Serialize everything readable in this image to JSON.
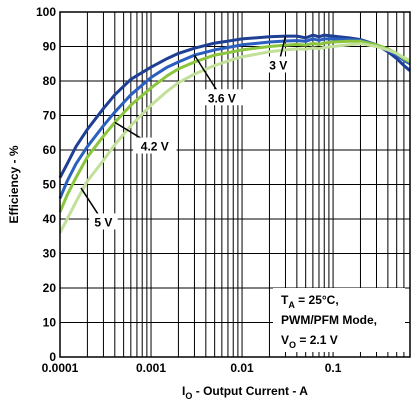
{
  "chart_data": {
    "type": "line",
    "xscale": "log",
    "xlim": [
      0.0001,
      0.7
    ],
    "ylim": [
      0,
      100
    ],
    "xlabel_main": "I",
    "xlabel_sub": "O",
    "xlabel_rest": " - Output Current - A",
    "ylabel": "Efficiency - %",
    "x_ticks": [
      {
        "value": 0.0001,
        "label": "0.0001"
      },
      {
        "value": 0.001,
        "label": "0.001"
      },
      {
        "value": 0.01,
        "label": "0.01"
      },
      {
        "value": 0.1,
        "label": "0.1"
      }
    ],
    "y_ticks": [
      0,
      10,
      20,
      30,
      40,
      50,
      60,
      70,
      80,
      90,
      100
    ],
    "grid": true,
    "series": [
      {
        "name": "3 V",
        "color": "#1f3f95",
        "points": [
          [
            0.0001,
            52
          ],
          [
            0.00012,
            56
          ],
          [
            0.00015,
            61
          ],
          [
            0.0002,
            66
          ],
          [
            0.0003,
            72
          ],
          [
            0.0004,
            76
          ],
          [
            0.0006,
            80.5
          ],
          [
            0.001,
            84
          ],
          [
            0.0015,
            86.5
          ],
          [
            0.002,
            88
          ],
          [
            0.003,
            89.5
          ],
          [
            0.005,
            91
          ],
          [
            0.008,
            91.8
          ],
          [
            0.01,
            92.2
          ],
          [
            0.02,
            92.8
          ],
          [
            0.03,
            93
          ],
          [
            0.04,
            93
          ],
          [
            0.05,
            92.5
          ],
          [
            0.06,
            93.3
          ],
          [
            0.07,
            92.8
          ],
          [
            0.08,
            93.3
          ],
          [
            0.1,
            93
          ],
          [
            0.15,
            92.5
          ],
          [
            0.2,
            92
          ],
          [
            0.3,
            90.5
          ],
          [
            0.4,
            88.5
          ],
          [
            0.5,
            86.5
          ],
          [
            0.6,
            84.5
          ],
          [
            0.7,
            83
          ]
        ]
      },
      {
        "name": "3.6 V",
        "color": "#2a5fc0",
        "points": [
          [
            0.0001,
            46
          ],
          [
            0.00012,
            51
          ],
          [
            0.00015,
            56
          ],
          [
            0.0002,
            61
          ],
          [
            0.0003,
            67
          ],
          [
            0.0004,
            71
          ],
          [
            0.0006,
            76
          ],
          [
            0.001,
            81
          ],
          [
            0.0015,
            84
          ],
          [
            0.002,
            85.5
          ],
          [
            0.003,
            87.5
          ],
          [
            0.005,
            89
          ],
          [
            0.008,
            90
          ],
          [
            0.01,
            90.5
          ],
          [
            0.02,
            91.3
          ],
          [
            0.03,
            91.6
          ],
          [
            0.04,
            91.7
          ],
          [
            0.05,
            91.5
          ],
          [
            0.06,
            92.2
          ],
          [
            0.07,
            91.8
          ],
          [
            0.08,
            92.2
          ],
          [
            0.1,
            92.2
          ],
          [
            0.15,
            92
          ],
          [
            0.2,
            91.8
          ],
          [
            0.3,
            90.5
          ],
          [
            0.4,
            89
          ],
          [
            0.5,
            87.5
          ],
          [
            0.6,
            86
          ],
          [
            0.7,
            85
          ]
        ]
      },
      {
        "name": "4.2 V",
        "color": "#8cc63f",
        "points": [
          [
            0.0001,
            42
          ],
          [
            0.00012,
            47
          ],
          [
            0.00015,
            52
          ],
          [
            0.0002,
            58
          ],
          [
            0.0003,
            64
          ],
          [
            0.0004,
            68
          ],
          [
            0.0006,
            73
          ],
          [
            0.001,
            78
          ],
          [
            0.0015,
            81.5
          ],
          [
            0.002,
            83.5
          ],
          [
            0.003,
            85.5
          ],
          [
            0.005,
            87.5
          ],
          [
            0.008,
            88.5
          ],
          [
            0.01,
            89
          ],
          [
            0.02,
            90
          ],
          [
            0.03,
            90.4
          ],
          [
            0.04,
            90.6
          ],
          [
            0.05,
            90.4
          ],
          [
            0.06,
            90.9
          ],
          [
            0.07,
            90.6
          ],
          [
            0.08,
            91
          ],
          [
            0.1,
            91.3
          ],
          [
            0.15,
            91.5
          ],
          [
            0.2,
            91.5
          ],
          [
            0.3,
            90.5
          ],
          [
            0.4,
            89.3
          ],
          [
            0.5,
            88
          ],
          [
            0.6,
            86.5
          ],
          [
            0.7,
            85.5
          ]
        ]
      },
      {
        "name": "5 V",
        "color": "#c2e09a",
        "points": [
          [
            0.0001,
            36
          ],
          [
            0.00012,
            40
          ],
          [
            0.00015,
            45
          ],
          [
            0.0002,
            51
          ],
          [
            0.0003,
            57
          ],
          [
            0.0004,
            61.5
          ],
          [
            0.0006,
            67
          ],
          [
            0.001,
            73
          ],
          [
            0.0015,
            77
          ],
          [
            0.002,
            79.5
          ],
          [
            0.003,
            82
          ],
          [
            0.005,
            84.5
          ],
          [
            0.008,
            86.3
          ],
          [
            0.01,
            87
          ],
          [
            0.02,
            88.5
          ],
          [
            0.03,
            89
          ],
          [
            0.04,
            89.3
          ],
          [
            0.05,
            89.2
          ],
          [
            0.06,
            89.6
          ],
          [
            0.07,
            89.4
          ],
          [
            0.08,
            89.7
          ],
          [
            0.1,
            90
          ],
          [
            0.15,
            90.5
          ],
          [
            0.2,
            90.8
          ],
          [
            0.3,
            90
          ],
          [
            0.4,
            89
          ],
          [
            0.5,
            88
          ],
          [
            0.6,
            86.8
          ],
          [
            0.7,
            86
          ]
        ]
      }
    ],
    "callouts": [
      {
        "label": "3 V",
        "x": 0.03,
        "y": 93,
        "lx": 0.025,
        "ly": 84.5
      },
      {
        "label": "3.6 V",
        "x": 0.003,
        "y": 87.5,
        "lx": 0.006,
        "ly": 75
      },
      {
        "label": "4.2 V",
        "x": 0.0004,
        "y": 68,
        "lx": 0.0011,
        "ly": 61
      },
      {
        "label": "5 V",
        "x": 0.00017,
        "y": 49,
        "lx": 0.0003,
        "ly": 39
      }
    ],
    "conditions": {
      "line1_main": "T",
      "line1_sub": "A",
      "line1_rest": " = 25°C,",
      "line2": "PWM/PFM Mode,",
      "line3_main": "V",
      "line3_sub": "O",
      "line3_rest": " = 2.1 V"
    }
  }
}
